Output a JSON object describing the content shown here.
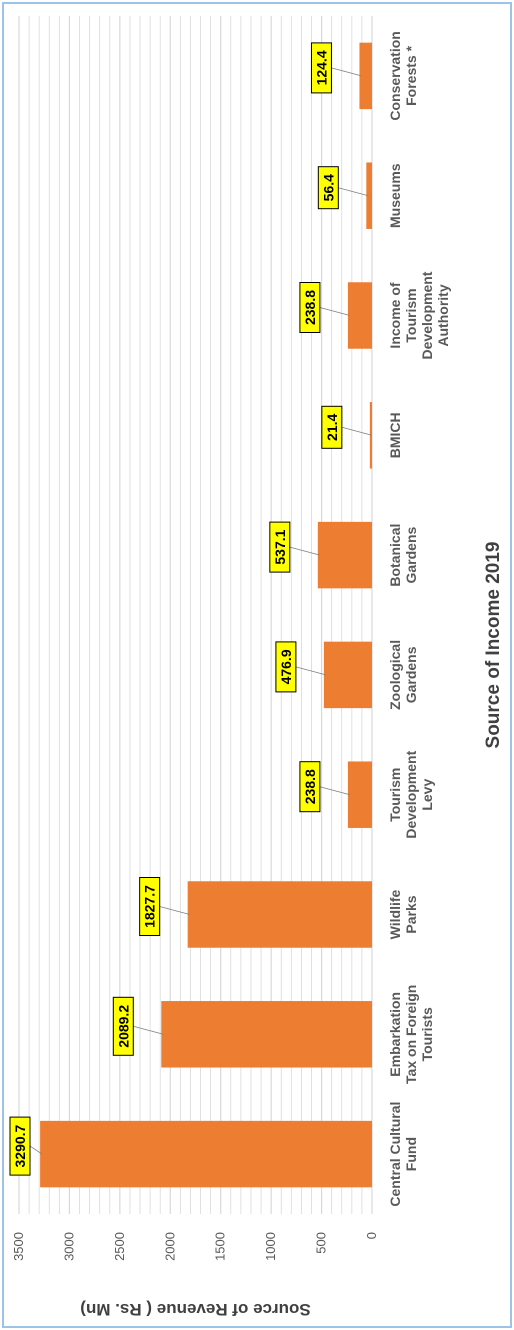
{
  "chart_data": {
    "type": "bar",
    "orientation": "vertical-rotated-90",
    "title": "Source of Income 2019",
    "ylabel": "Source of Revenue ( Rs. Mn)",
    "xlabel": "",
    "categories": [
      [
        "Central Cultural",
        "Fund"
      ],
      [
        "Embarkation",
        "Tax on Foreign",
        "Tourists"
      ],
      [
        "Wildlife",
        "Parks"
      ],
      [
        "Tourism",
        "Development",
        "Levy"
      ],
      [
        "Zoological",
        "Gardens"
      ],
      [
        "Botanical",
        "Gardens"
      ],
      [
        "BMICH"
      ],
      [
        "Income of",
        "Tourism",
        "Development",
        "Authority"
      ],
      [
        "Museums"
      ],
      [
        "Conservation",
        "Forests *"
      ]
    ],
    "values": [
      3290.7,
      2089.2,
      1827.7,
      238.8,
      476.9,
      537.1,
      21.4,
      238.8,
      56.4,
      124.4
    ],
    "data_labels": [
      "3290.7",
      "2089.2",
      "1827.7",
      "238.8",
      "476.9",
      "537.1",
      "21.4",
      "238.8",
      "56.4",
      "124.4"
    ],
    "ylim": [
      0,
      3500
    ],
    "yticks": [
      "0",
      "500",
      "1000",
      "1500",
      "2000",
      "2500",
      "3000",
      "3500"
    ],
    "grid": true,
    "colors": {
      "bar": "#ed7d31",
      "label_fill": "#ffff00",
      "grid": "#d9d9d9",
      "frame": "#9dc3e6"
    }
  }
}
